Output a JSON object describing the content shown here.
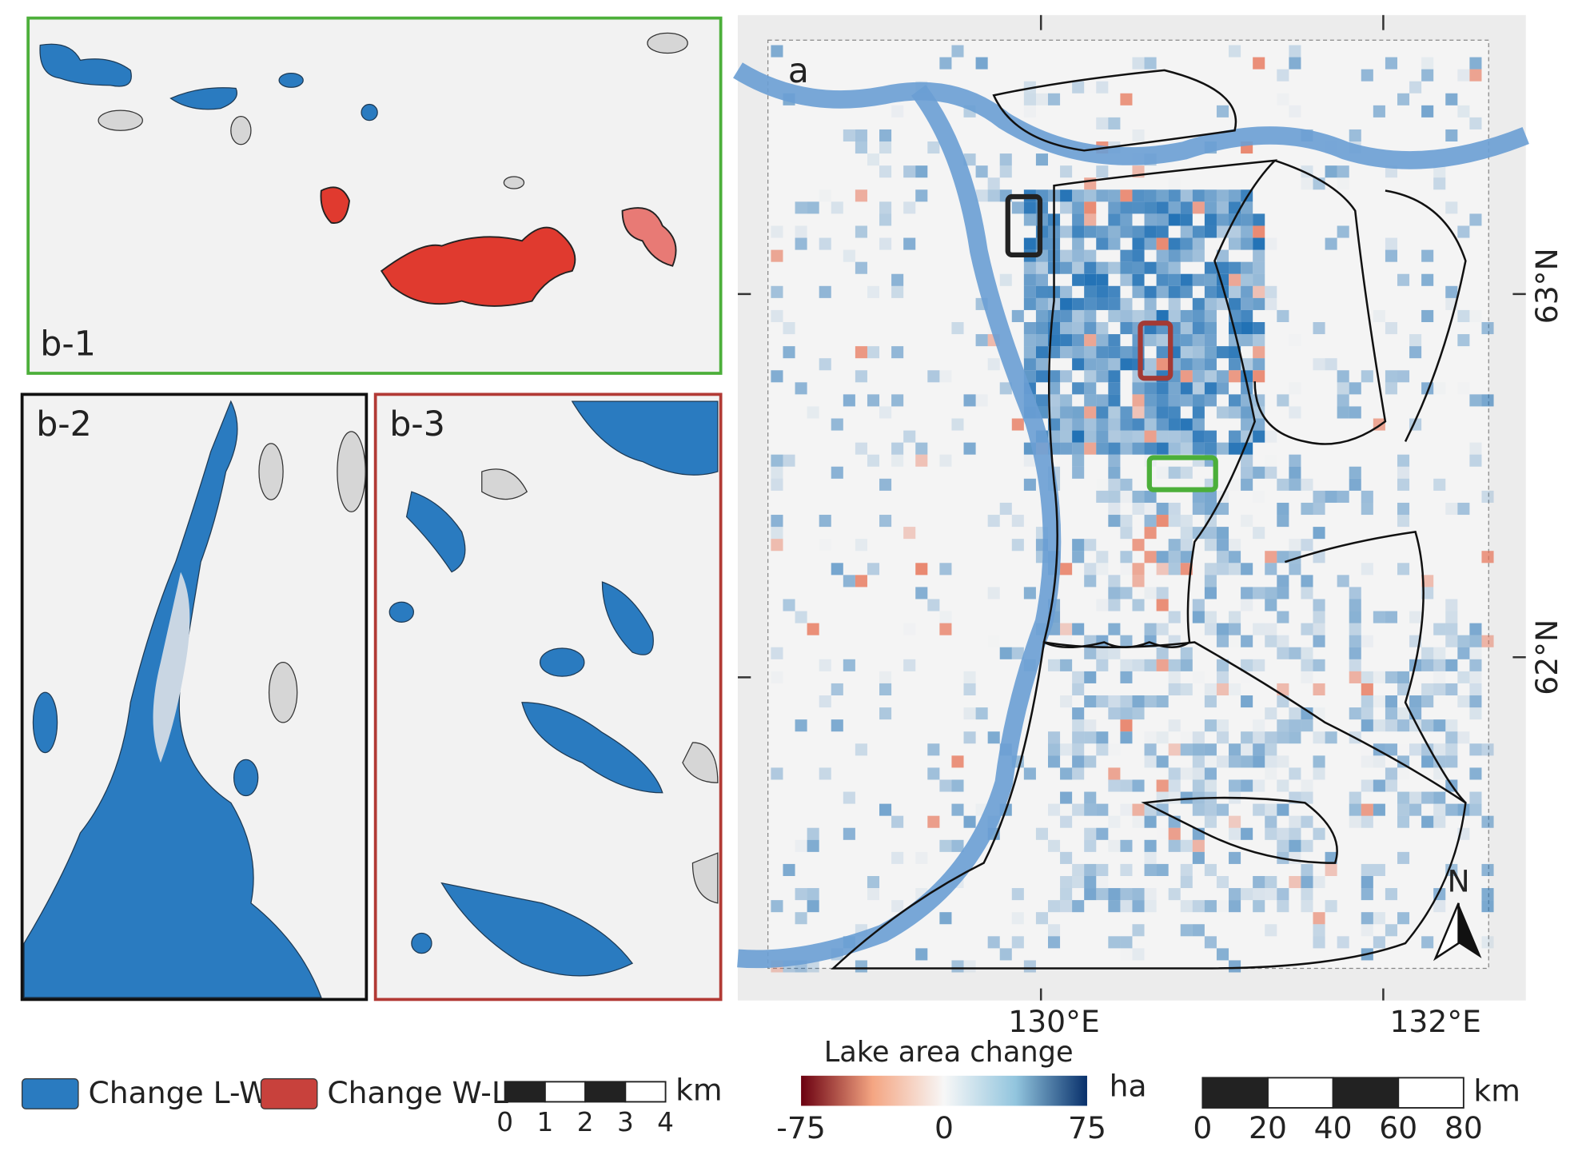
{
  "map": {
    "label": "a",
    "lon_labels": [
      "130°E",
      "132°E"
    ],
    "lat_labels": [
      "63°N",
      "62°N"
    ],
    "north": "N"
  },
  "insets": [
    {
      "label": "b-1"
    },
    {
      "label": "b-2"
    },
    {
      "label": "b-3"
    }
  ],
  "legend": {
    "items": [
      {
        "name": "Change L-W",
        "color": "#2a7bc0"
      },
      {
        "name": "Change W-L",
        "color": "#c8413c"
      }
    ]
  },
  "inset_scale": {
    "unit": "km",
    "ticks": [
      0,
      1,
      2,
      3,
      4
    ]
  },
  "colorbar": {
    "title": "Lake area change",
    "unit": "ha",
    "ticks": [
      -75,
      0,
      75
    ]
  },
  "map_scale": {
    "unit": "km",
    "ticks": [
      0,
      20,
      40,
      60,
      80
    ]
  }
}
